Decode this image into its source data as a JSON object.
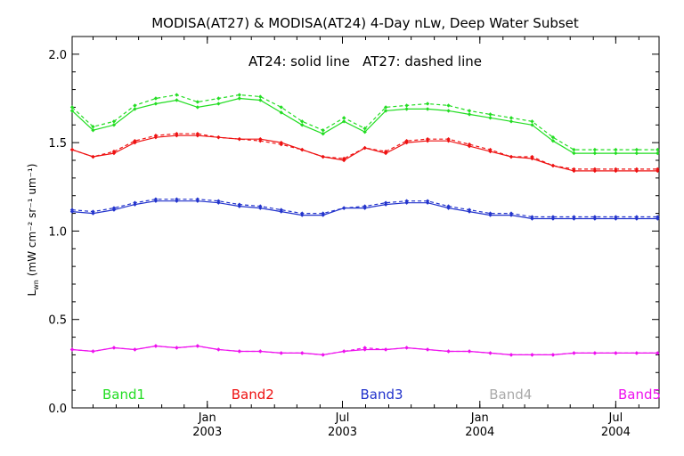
{
  "chart_data": {
    "type": "line",
    "title": "MODISA(AT27) & MODISA(AT24) 4-Day nLw, Deep Water Subset",
    "subtitle": "AT24: solid line   AT27: dashed line",
    "ylabel_main": "L",
    "ylabel_sub": "wn",
    "ylabel_rest": "(mW cm⁻² sr⁻¹ um⁻¹)",
    "xlabel": "",
    "xlim": [
      "2002-07-04",
      "2004-08-28"
    ],
    "ylim": [
      0.0,
      2.1
    ],
    "y_ticks": [
      "0.0",
      "0.5",
      "1.0",
      "1.5",
      "2.0"
    ],
    "x_ticks": [
      {
        "date": "2003-01-01",
        "line1": "Jan",
        "line2": "2003"
      },
      {
        "date": "2003-07-01",
        "line1": "Jul",
        "line2": "2003"
      },
      {
        "date": "2004-01-01",
        "line1": "Jan",
        "line2": "2004"
      },
      {
        "date": "2004-07-01",
        "line1": "Jul",
        "line2": "2004"
      }
    ],
    "x": [
      "2002-07-04",
      "2002-08-01",
      "2002-08-29",
      "2002-09-26",
      "2002-10-24",
      "2002-11-21",
      "2002-12-19",
      "2003-01-16",
      "2003-02-13",
      "2003-03-13",
      "2003-04-10",
      "2003-05-08",
      "2003-06-05",
      "2003-07-03",
      "2003-07-31",
      "2003-08-28",
      "2003-09-25",
      "2003-10-23",
      "2003-11-20",
      "2003-12-18",
      "2004-01-15",
      "2004-02-12",
      "2004-03-11",
      "2004-04-08",
      "2004-05-06",
      "2004-06-03",
      "2004-07-01",
      "2004-07-29",
      "2004-08-26"
    ],
    "series": [
      {
        "name": "Band1",
        "color": "#22dd22",
        "solid": [
          1.68,
          1.57,
          1.6,
          1.69,
          1.72,
          1.74,
          1.7,
          1.72,
          1.75,
          1.74,
          1.67,
          1.6,
          1.55,
          1.62,
          1.56,
          1.68,
          1.69,
          1.69,
          1.68,
          1.66,
          1.64,
          1.62,
          1.6,
          1.51,
          1.44,
          1.44,
          1.44,
          1.44,
          1.44
        ],
        "dashed": [
          1.7,
          1.59,
          1.62,
          1.71,
          1.75,
          1.77,
          1.73,
          1.75,
          1.77,
          1.76,
          1.7,
          1.62,
          1.57,
          1.64,
          1.58,
          1.7,
          1.71,
          1.72,
          1.71,
          1.68,
          1.66,
          1.64,
          1.62,
          1.53,
          1.46,
          1.46,
          1.46,
          1.46,
          1.46
        ]
      },
      {
        "name": "Band2",
        "color": "#ee1111",
        "solid": [
          1.46,
          1.42,
          1.44,
          1.5,
          1.53,
          1.54,
          1.54,
          1.53,
          1.52,
          1.52,
          1.5,
          1.46,
          1.42,
          1.4,
          1.47,
          1.44,
          1.5,
          1.51,
          1.51,
          1.48,
          1.45,
          1.42,
          1.41,
          1.37,
          1.34,
          1.34,
          1.34,
          1.34,
          1.34
        ],
        "dashed": [
          1.46,
          1.42,
          1.45,
          1.51,
          1.54,
          1.55,
          1.55,
          1.53,
          1.52,
          1.51,
          1.49,
          1.46,
          1.42,
          1.41,
          1.47,
          1.45,
          1.51,
          1.52,
          1.52,
          1.49,
          1.46,
          1.42,
          1.42,
          1.37,
          1.35,
          1.35,
          1.35,
          1.35,
          1.35
        ]
      },
      {
        "name": "Band3",
        "color": "#2233cc",
        "solid": [
          1.11,
          1.1,
          1.12,
          1.15,
          1.17,
          1.17,
          1.17,
          1.16,
          1.14,
          1.13,
          1.11,
          1.09,
          1.09,
          1.13,
          1.13,
          1.15,
          1.16,
          1.16,
          1.13,
          1.11,
          1.09,
          1.09,
          1.07,
          1.07,
          1.07,
          1.07,
          1.07,
          1.07,
          1.07
        ],
        "dashed": [
          1.12,
          1.11,
          1.13,
          1.16,
          1.18,
          1.18,
          1.18,
          1.17,
          1.15,
          1.14,
          1.12,
          1.1,
          1.1,
          1.13,
          1.14,
          1.16,
          1.17,
          1.17,
          1.14,
          1.12,
          1.1,
          1.1,
          1.08,
          1.08,
          1.08,
          1.08,
          1.08,
          1.08,
          1.08
        ]
      },
      {
        "name": "Band4",
        "color": "#aaaaaa",
        "solid": [],
        "dashed": []
      },
      {
        "name": "Band5",
        "color": "#ee11ee",
        "solid": [
          0.33,
          0.32,
          0.34,
          0.33,
          0.35,
          0.34,
          0.35,
          0.33,
          0.32,
          0.32,
          0.31,
          0.31,
          0.3,
          0.32,
          0.33,
          0.33,
          0.34,
          0.33,
          0.32,
          0.32,
          0.31,
          0.3,
          0.3,
          0.3,
          0.31,
          0.31,
          0.31,
          0.31,
          0.31
        ],
        "dashed": [
          0.33,
          0.32,
          0.34,
          0.33,
          0.35,
          0.34,
          0.35,
          0.33,
          0.32,
          0.32,
          0.31,
          0.31,
          0.3,
          0.32,
          0.34,
          0.33,
          0.34,
          0.33,
          0.32,
          0.32,
          0.31,
          0.3,
          0.3,
          0.3,
          0.31,
          0.31,
          0.31,
          0.31,
          0.31
        ]
      }
    ],
    "grid": false,
    "legend_placement": "bottom, inside plot"
  }
}
